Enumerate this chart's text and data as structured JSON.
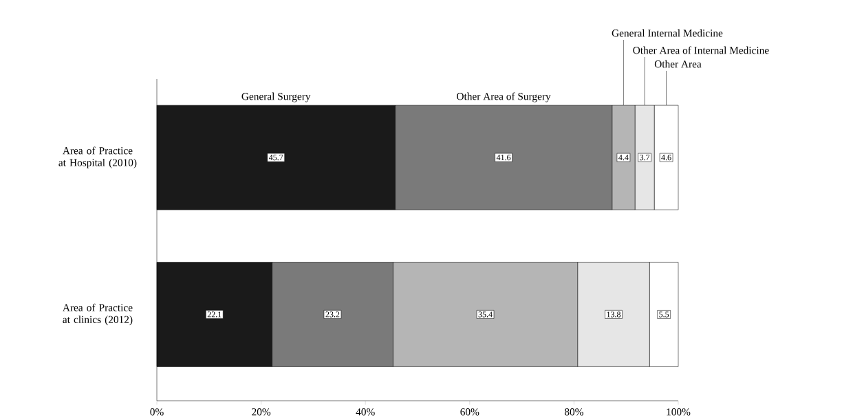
{
  "chart_data": {
    "type": "bar",
    "orientation": "horizontal",
    "stacked": true,
    "data_labels": true,
    "categories": [
      "Area of Practice at Hospital (2010)",
      "Area of Practice at clinics (2012)"
    ],
    "series": [
      {
        "name": "General Surgery",
        "color": "#1a1a1a",
        "values": [
          45.7,
          22.1
        ]
      },
      {
        "name": "Other Area of Surgery",
        "color": "#7a7a7a",
        "values": [
          41.6,
          23.2
        ]
      },
      {
        "name": "General Internal Medicine",
        "color": "#b5b5b5",
        "values": [
          4.4,
          35.4
        ]
      },
      {
        "name": "Other Area of Internal Medicine",
        "color": "#e6e6e6",
        "values": [
          3.7,
          13.8
        ]
      },
      {
        "name": "Other Area",
        "color": "#ffffff",
        "values": [
          4.6,
          5.5
        ]
      }
    ],
    "xlim": [
      0,
      100
    ],
    "xticks": [
      {
        "value": 0,
        "label": "0%"
      },
      {
        "value": 20,
        "label": "20%"
      },
      {
        "value": 40,
        "label": "40%"
      },
      {
        "value": 60,
        "label": "60%"
      },
      {
        "value": 80,
        "label": "80%"
      },
      {
        "value": 100,
        "label": "100%"
      }
    ]
  }
}
